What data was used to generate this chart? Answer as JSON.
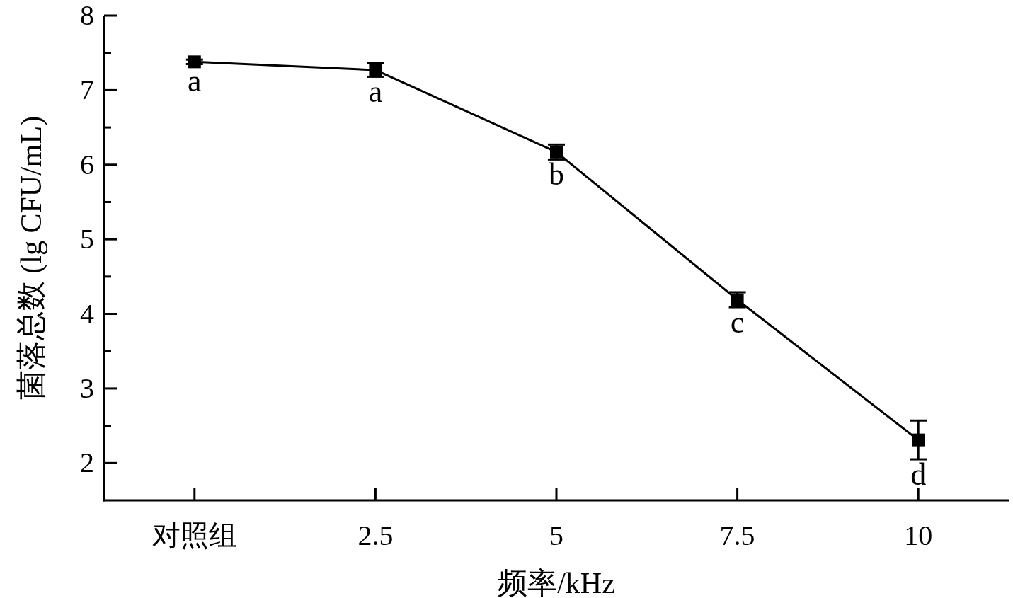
{
  "chart_data": {
    "type": "line",
    "xlabel": "频率/kHz",
    "ylabel": "菌落总数 (lg CFU/mL)",
    "categories": [
      "对照组",
      "2.5",
      "5",
      "7.5",
      "10"
    ],
    "values": [
      7.38,
      7.27,
      6.17,
      4.19,
      2.31
    ],
    "errors": [
      0.03,
      0.09,
      0.1,
      0.1,
      0.26
    ],
    "color": "#000000",
    "marker": "square",
    "line_style": "solid",
    "grid": false,
    "ylim": [
      1.5,
      8
    ],
    "yticks": [
      2,
      3,
      4,
      5,
      6,
      7,
      8
    ],
    "annotations": [
      {
        "text": "a",
        "x": "对照组",
        "y": 7.38
      },
      {
        "text": "a",
        "x": "2.5",
        "y": 7.27
      },
      {
        "text": "b",
        "x": "5",
        "y": 6.17
      },
      {
        "text": "c",
        "x": "7.5",
        "y": 4.19
      },
      {
        "text": "d",
        "x": "10",
        "y": 2.31
      }
    ]
  }
}
